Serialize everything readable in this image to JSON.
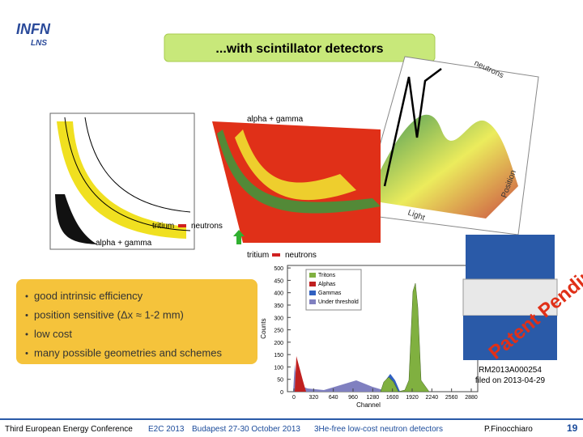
{
  "logo": {
    "main": "INFN",
    "sub": "LNS"
  },
  "title": "...with scintillator detectors",
  "plot3d": {
    "neutrons": "neutrons",
    "position": "Position",
    "light": "Light",
    "alpha_gamma": "alpha + gamma"
  },
  "plot2d": {
    "tritium": "tritium",
    "neutrons": "neutrons",
    "alpha_gamma": "alpha + gamma"
  },
  "arrow_labels": {
    "tritium": "tritium",
    "neutrons": "neutrons"
  },
  "bullets": [
    "good intrinsic efficiency",
    "position sensitive (Δx ≈ 1-2 mm)",
    "low cost",
    "many possible geometries and schemes"
  ],
  "histogram": {
    "ylabel": "Counts",
    "xlabel": "Channel",
    "yticks": [
      "0",
      "50",
      "100",
      "150",
      "200",
      "250",
      "300",
      "350",
      "400",
      "450",
      "500"
    ],
    "xticks": [
      "0",
      "320",
      "640",
      "960",
      "1280",
      "1600",
      "1920",
      "2240",
      "2560",
      "2880"
    ],
    "legend": [
      "Tritons",
      "Alphas",
      "Gammas",
      "Under threshold"
    ]
  },
  "stamp": {
    "text": "Patent Pending",
    "number": "RM2013A000254",
    "filed": "filed on 2013-04-29"
  },
  "footer": {
    "conference": "Third European Energy Conference",
    "acronym": "E2C 2013",
    "place": "Budapest 27-30 October 2013",
    "talk": "3He-free low-cost neutron detectors",
    "author": "P.Finocchiaro",
    "page": "19"
  }
}
